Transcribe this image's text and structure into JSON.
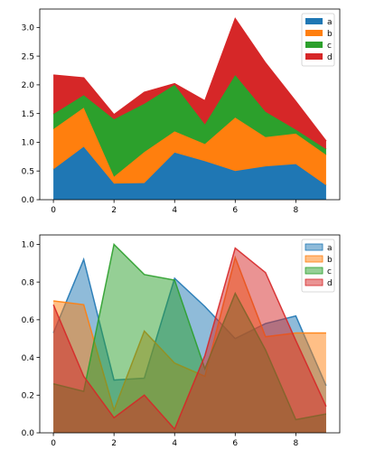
{
  "chart_data": [
    {
      "type": "area",
      "stacked": true,
      "x": [
        0,
        1,
        2,
        3,
        4,
        5,
        6,
        7,
        8,
        9
      ],
      "series": [
        {
          "name": "a",
          "color": "#1f77b4",
          "values": [
            0.53,
            0.92,
            0.28,
            0.29,
            0.82,
            0.67,
            0.5,
            0.58,
            0.62,
            0.25
          ]
        },
        {
          "name": "b",
          "color": "#ff7f0e",
          "values": [
            0.7,
            0.68,
            0.12,
            0.54,
            0.37,
            0.3,
            0.93,
            0.51,
            0.53,
            0.53
          ]
        },
        {
          "name": "c",
          "color": "#2ca02c",
          "values": [
            0.26,
            0.22,
            1.0,
            0.84,
            0.81,
            0.34,
            0.74,
            0.44,
            0.07,
            0.1
          ]
        },
        {
          "name": "d",
          "color": "#d62728",
          "values": [
            0.68,
            0.3,
            0.08,
            0.2,
            0.02,
            0.41,
            0.98,
            0.85,
            0.49,
            0.14
          ]
        }
      ],
      "xticks": [
        "0",
        "2",
        "4",
        "6",
        "8"
      ],
      "yticks": [
        "0.0",
        "0.5",
        "1.0",
        "1.5",
        "2.0",
        "2.5",
        "3.0"
      ],
      "xlim": [
        -0.45,
        9.45
      ],
      "ylim": [
        0,
        3.32
      ],
      "legend_placement": "top-right",
      "grid": false
    },
    {
      "type": "area",
      "stacked": false,
      "alpha": 0.5,
      "x": [
        0,
        1,
        2,
        3,
        4,
        5,
        6,
        7,
        8,
        9
      ],
      "series": [
        {
          "name": "a",
          "color": "#1f77b4",
          "values": [
            0.53,
            0.92,
            0.28,
            0.29,
            0.82,
            0.67,
            0.5,
            0.58,
            0.62,
            0.25
          ]
        },
        {
          "name": "b",
          "color": "#ff7f0e",
          "values": [
            0.7,
            0.68,
            0.12,
            0.54,
            0.37,
            0.3,
            0.93,
            0.51,
            0.53,
            0.53
          ]
        },
        {
          "name": "c",
          "color": "#2ca02c",
          "values": [
            0.26,
            0.22,
            1.0,
            0.84,
            0.81,
            0.34,
            0.74,
            0.44,
            0.07,
            0.1
          ]
        },
        {
          "name": "d",
          "color": "#d62728",
          "values": [
            0.68,
            0.3,
            0.08,
            0.2,
            0.02,
            0.41,
            0.98,
            0.85,
            0.49,
            0.14
          ]
        }
      ],
      "xticks": [
        "0",
        "2",
        "4",
        "6",
        "8"
      ],
      "yticks": [
        "0.0",
        "0.2",
        "0.4",
        "0.6",
        "0.8",
        "1.0"
      ],
      "xlim": [
        -0.45,
        9.45
      ],
      "ylim": [
        0,
        1.05
      ],
      "legend_placement": "top-right",
      "grid": false
    }
  ]
}
